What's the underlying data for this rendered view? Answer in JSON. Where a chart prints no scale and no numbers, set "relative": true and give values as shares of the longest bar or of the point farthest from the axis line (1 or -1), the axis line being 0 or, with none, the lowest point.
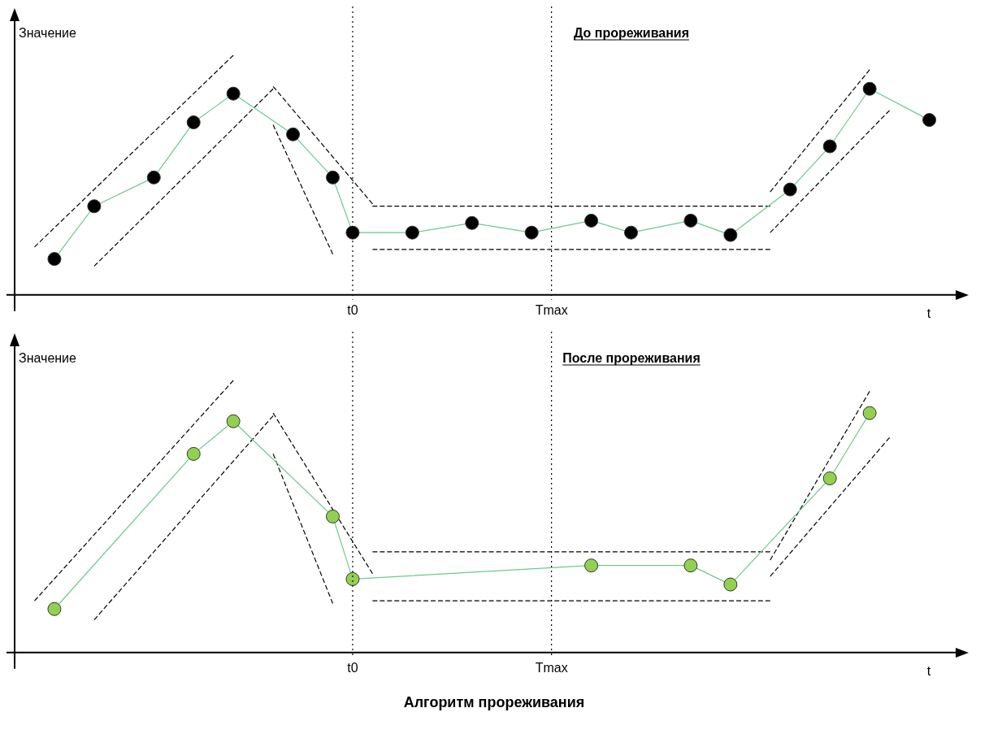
{
  "chart_data": [
    {
      "type": "line",
      "title": "До прореживания",
      "ylabel": "Значение",
      "xlabel": "t",
      "relative": true,
      "legend": false,
      "marker": "circle",
      "categories": [
        null,
        null,
        null,
        null,
        null,
        null,
        null,
        null,
        null,
        null,
        null,
        null,
        null,
        null,
        null,
        null,
        null,
        "t0",
        null,
        null,
        null,
        null,
        null,
        null,
        null,
        null,
        null,
        "Tmax",
        null,
        null,
        null,
        null,
        null,
        null,
        null,
        null,
        null,
        null,
        null,
        null,
        null,
        null,
        null,
        null,
        null,
        null,
        null,
        null
      ],
      "ref_lines": [
        {
          "axis": "x",
          "value": "t0",
          "line_style": "dotted",
          "color": "#000000"
        },
        {
          "axis": "x",
          "value": "Tmax",
          "line_style": "dotted",
          "color": "#000000"
        }
      ],
      "series": [
        {
          "color": "#6cc890",
          "colors": [
            null,
            null,
            "#000000",
            null,
            "#000000",
            null,
            null,
            "#000000",
            null,
            "#000000",
            null,
            "#000000",
            null,
            null,
            "#000000",
            null,
            "#000000",
            "#000000",
            null,
            null,
            "#000000",
            null,
            null,
            "#000000",
            null,
            null,
            "#000000",
            null,
            null,
            "#000000",
            null,
            "#000000",
            null,
            null,
            "#000000",
            null,
            "#000000",
            null,
            null,
            "#000000",
            null,
            "#000000",
            null,
            "#000000",
            null,
            null,
            "#000000",
            null
          ],
          "values": [
            null,
            null,
            0.15,
            null,
            0.37,
            null,
            null,
            0.49,
            null,
            0.72,
            null,
            0.84,
            null,
            null,
            0.67,
            null,
            0.49,
            0.26,
            null,
            null,
            0.26,
            null,
            null,
            0.3,
            null,
            null,
            0.26,
            null,
            null,
            0.31,
            null,
            0.26,
            null,
            null,
            0.31,
            null,
            0.25,
            null,
            null,
            0.44,
            null,
            0.62,
            null,
            0.86,
            null,
            null,
            0.73,
            null
          ]
        },
        {
          "color": "#000000",
          "line_style": "dashed",
          "marker": "none",
          "values": [
            null,
            0.2,
            null,
            null,
            null,
            null,
            null,
            null,
            null,
            null,
            null,
            1.0,
            null,
            null,
            null,
            null,
            null,
            null,
            null,
            null,
            null,
            null,
            null,
            null,
            null,
            null,
            null,
            null,
            null,
            null,
            null,
            null,
            null,
            null,
            null,
            null,
            null,
            null,
            null,
            null,
            null,
            null,
            null,
            null,
            null,
            null,
            null,
            null
          ]
        },
        {
          "color": "#000000",
          "line_style": "dashed",
          "marker": "none",
          "values": [
            null,
            null,
            null,
            null,
            0.12,
            null,
            null,
            null,
            null,
            null,
            null,
            null,
            null,
            0.86,
            null,
            null,
            null,
            null,
            null,
            null,
            null,
            null,
            null,
            null,
            null,
            null,
            null,
            null,
            null,
            null,
            null,
            null,
            null,
            null,
            null,
            null,
            null,
            null,
            null,
            null,
            null,
            null,
            null,
            null,
            null,
            null,
            null,
            null
          ]
        },
        {
          "color": "#000000",
          "line_style": "dashed",
          "marker": "none",
          "values": [
            null,
            null,
            null,
            null,
            null,
            null,
            null,
            null,
            null,
            null,
            null,
            null,
            null,
            0.87,
            null,
            null,
            null,
            null,
            0.38,
            null,
            null,
            null,
            null,
            null,
            null,
            null,
            null,
            null,
            null,
            null,
            null,
            null,
            null,
            null,
            null,
            null,
            null,
            null,
            null,
            null,
            null,
            null,
            null,
            null,
            null,
            null,
            null,
            null
          ]
        },
        {
          "color": "#000000",
          "line_style": "dashed",
          "marker": "none",
          "values": [
            null,
            null,
            null,
            null,
            null,
            null,
            null,
            null,
            null,
            null,
            null,
            null,
            null,
            0.71,
            null,
            null,
            0.17,
            null,
            null,
            null,
            null,
            null,
            null,
            null,
            null,
            null,
            null,
            null,
            null,
            null,
            null,
            null,
            null,
            null,
            null,
            null,
            null,
            null,
            null,
            null,
            null,
            null,
            null,
            null,
            null,
            null,
            null,
            null
          ]
        },
        {
          "color": "#000000",
          "line_style": "dashed",
          "marker": "none",
          "values": [
            null,
            null,
            null,
            null,
            null,
            null,
            null,
            null,
            null,
            null,
            null,
            null,
            null,
            null,
            null,
            null,
            null,
            null,
            0.37,
            null,
            null,
            null,
            null,
            null,
            null,
            null,
            null,
            null,
            null,
            null,
            null,
            null,
            null,
            null,
            null,
            null,
            null,
            null,
            0.37,
            null,
            null,
            null,
            null,
            null,
            null,
            null,
            null,
            null
          ]
        },
        {
          "color": "#000000",
          "line_style": "dashed",
          "marker": "none",
          "values": [
            null,
            null,
            null,
            null,
            null,
            null,
            null,
            null,
            null,
            null,
            null,
            null,
            null,
            null,
            null,
            null,
            null,
            null,
            0.19,
            null,
            null,
            null,
            null,
            null,
            null,
            null,
            null,
            null,
            null,
            null,
            null,
            null,
            null,
            null,
            null,
            null,
            null,
            null,
            0.19,
            null,
            null,
            null,
            null,
            null,
            null,
            null,
            null,
            null
          ]
        },
        {
          "color": "#000000",
          "line_style": "dashed",
          "marker": "none",
          "values": [
            null,
            null,
            null,
            null,
            null,
            null,
            null,
            null,
            null,
            null,
            null,
            null,
            null,
            null,
            null,
            null,
            null,
            null,
            null,
            null,
            null,
            null,
            null,
            null,
            null,
            null,
            null,
            null,
            null,
            null,
            null,
            null,
            null,
            null,
            null,
            null,
            null,
            null,
            0.43,
            null,
            null,
            null,
            null,
            0.94,
            null,
            null,
            null,
            null
          ]
        },
        {
          "color": "#000000",
          "line_style": "dashed",
          "marker": "none",
          "values": [
            null,
            null,
            null,
            null,
            null,
            null,
            null,
            null,
            null,
            null,
            null,
            null,
            null,
            null,
            null,
            null,
            null,
            null,
            null,
            null,
            null,
            null,
            null,
            null,
            null,
            null,
            null,
            null,
            null,
            null,
            null,
            null,
            null,
            null,
            null,
            null,
            null,
            null,
            0.26,
            null,
            null,
            null,
            null,
            null,
            0.77,
            null,
            null,
            null
          ]
        }
      ]
    },
    {
      "type": "line",
      "title": "После прореживания",
      "ylabel": "Значение",
      "xlabel": "t",
      "annotations": [
        "Алгоритм прореживания"
      ],
      "relative": true,
      "legend": false,
      "marker": "circle",
      "categories": [
        null,
        null,
        null,
        null,
        null,
        null,
        null,
        null,
        null,
        null,
        null,
        null,
        null,
        null,
        null,
        null,
        null,
        "t0",
        null,
        null,
        null,
        null,
        null,
        null,
        null,
        null,
        null,
        "Tmax",
        null,
        null,
        null,
        null,
        null,
        null,
        null,
        null,
        null,
        null,
        null,
        null,
        null,
        null,
        null,
        null,
        null,
        null,
        null,
        null
      ],
      "ref_lines": [
        {
          "axis": "x",
          "value": "t0",
          "line_style": "dotted",
          "color": "#000000"
        },
        {
          "axis": "x",
          "value": "Tmax",
          "line_style": "dotted",
          "color": "#000000"
        }
      ],
      "series": [
        {
          "color": "#6cc890",
          "colors": [
            null,
            null,
            "#92d050",
            null,
            null,
            null,
            null,
            null,
            null,
            "#92d050",
            null,
            "#92d050",
            null,
            null,
            null,
            null,
            "#92d050",
            "#92d050",
            null,
            null,
            null,
            null,
            null,
            null,
            null,
            null,
            null,
            null,
            null,
            "#92d050",
            null,
            null,
            null,
            null,
            "#92d050",
            null,
            "#92d050",
            null,
            null,
            null,
            null,
            "#92d050",
            null,
            "#92d050",
            null,
            null,
            null,
            null
          ],
          "values": [
            null,
            null,
            0.16,
            null,
            null,
            null,
            null,
            null,
            null,
            0.73,
            null,
            0.85,
            null,
            null,
            null,
            null,
            0.5,
            0.27,
            null,
            null,
            null,
            null,
            null,
            null,
            null,
            null,
            null,
            null,
            null,
            0.32,
            null,
            null,
            null,
            null,
            0.32,
            null,
            0.25,
            null,
            null,
            null,
            null,
            0.64,
            null,
            0.88,
            null,
            null,
            null,
            null
          ]
        },
        {
          "color": "#000000",
          "line_style": "dashed",
          "marker": "none",
          "values": [
            null,
            0.19,
            null,
            null,
            null,
            null,
            null,
            null,
            null,
            null,
            null,
            1.0,
            null,
            null,
            null,
            null,
            null,
            null,
            null,
            null,
            null,
            null,
            null,
            null,
            null,
            null,
            null,
            null,
            null,
            null,
            null,
            null,
            null,
            null,
            null,
            null,
            null,
            null,
            null,
            null,
            null,
            null,
            null,
            null,
            null,
            null,
            null,
            null
          ]
        },
        {
          "color": "#000000",
          "line_style": "dashed",
          "marker": "none",
          "values": [
            null,
            null,
            null,
            null,
            0.12,
            null,
            null,
            null,
            null,
            null,
            null,
            null,
            null,
            0.87,
            null,
            null,
            null,
            null,
            null,
            null,
            null,
            null,
            null,
            null,
            null,
            null,
            null,
            null,
            null,
            null,
            null,
            null,
            null,
            null,
            null,
            null,
            null,
            null,
            null,
            null,
            null,
            null,
            null,
            null,
            null,
            null,
            null,
            null
          ]
        },
        {
          "color": "#000000",
          "line_style": "dashed",
          "marker": "none",
          "values": [
            null,
            null,
            null,
            null,
            null,
            null,
            null,
            null,
            null,
            null,
            null,
            null,
            null,
            0.88,
            null,
            null,
            null,
            null,
            0.29,
            null,
            null,
            null,
            null,
            null,
            null,
            null,
            null,
            null,
            null,
            null,
            null,
            null,
            null,
            null,
            null,
            null,
            null,
            null,
            null,
            null,
            null,
            null,
            null,
            null,
            null,
            null,
            null,
            null
          ]
        },
        {
          "color": "#000000",
          "line_style": "dashed",
          "marker": "none",
          "values": [
            null,
            null,
            null,
            null,
            null,
            null,
            null,
            null,
            null,
            null,
            null,
            null,
            null,
            0.73,
            null,
            null,
            0.18,
            null,
            null,
            null,
            null,
            null,
            null,
            null,
            null,
            null,
            null,
            null,
            null,
            null,
            null,
            null,
            null,
            null,
            null,
            null,
            null,
            null,
            null,
            null,
            null,
            null,
            null,
            null,
            null,
            null,
            null,
            null
          ]
        },
        {
          "color": "#000000",
          "line_style": "dashed",
          "marker": "none",
          "values": [
            null,
            null,
            null,
            null,
            null,
            null,
            null,
            null,
            null,
            null,
            null,
            null,
            null,
            null,
            null,
            null,
            null,
            null,
            0.37,
            null,
            null,
            null,
            null,
            null,
            null,
            null,
            null,
            null,
            null,
            null,
            null,
            null,
            null,
            null,
            null,
            null,
            null,
            null,
            0.37,
            null,
            null,
            null,
            null,
            null,
            null,
            null,
            null,
            null
          ]
        },
        {
          "color": "#000000",
          "line_style": "dashed",
          "marker": "none",
          "values": [
            null,
            null,
            null,
            null,
            null,
            null,
            null,
            null,
            null,
            null,
            null,
            null,
            null,
            null,
            null,
            null,
            null,
            null,
            0.19,
            null,
            null,
            null,
            null,
            null,
            null,
            null,
            null,
            null,
            null,
            null,
            null,
            null,
            null,
            null,
            null,
            null,
            null,
            null,
            0.19,
            null,
            null,
            null,
            null,
            null,
            null,
            null,
            null,
            null
          ]
        },
        {
          "color": "#000000",
          "line_style": "dashed",
          "marker": "none",
          "values": [
            null,
            null,
            null,
            null,
            null,
            null,
            null,
            null,
            null,
            null,
            null,
            null,
            null,
            null,
            null,
            null,
            null,
            null,
            null,
            null,
            null,
            null,
            null,
            null,
            null,
            null,
            null,
            null,
            null,
            null,
            null,
            null,
            null,
            null,
            null,
            null,
            null,
            null,
            0.34,
            null,
            null,
            null,
            null,
            0.96,
            null,
            null,
            null,
            null
          ]
        },
        {
          "color": "#000000",
          "line_style": "dashed",
          "marker": "none",
          "values": [
            null,
            null,
            null,
            null,
            null,
            null,
            null,
            null,
            null,
            null,
            null,
            null,
            null,
            null,
            null,
            null,
            null,
            null,
            null,
            null,
            null,
            null,
            null,
            null,
            null,
            null,
            null,
            null,
            null,
            null,
            null,
            null,
            null,
            null,
            null,
            null,
            null,
            null,
            0.28,
            null,
            null,
            null,
            null,
            null,
            0.79,
            null,
            null,
            null
          ]
        }
      ]
    }
  ]
}
